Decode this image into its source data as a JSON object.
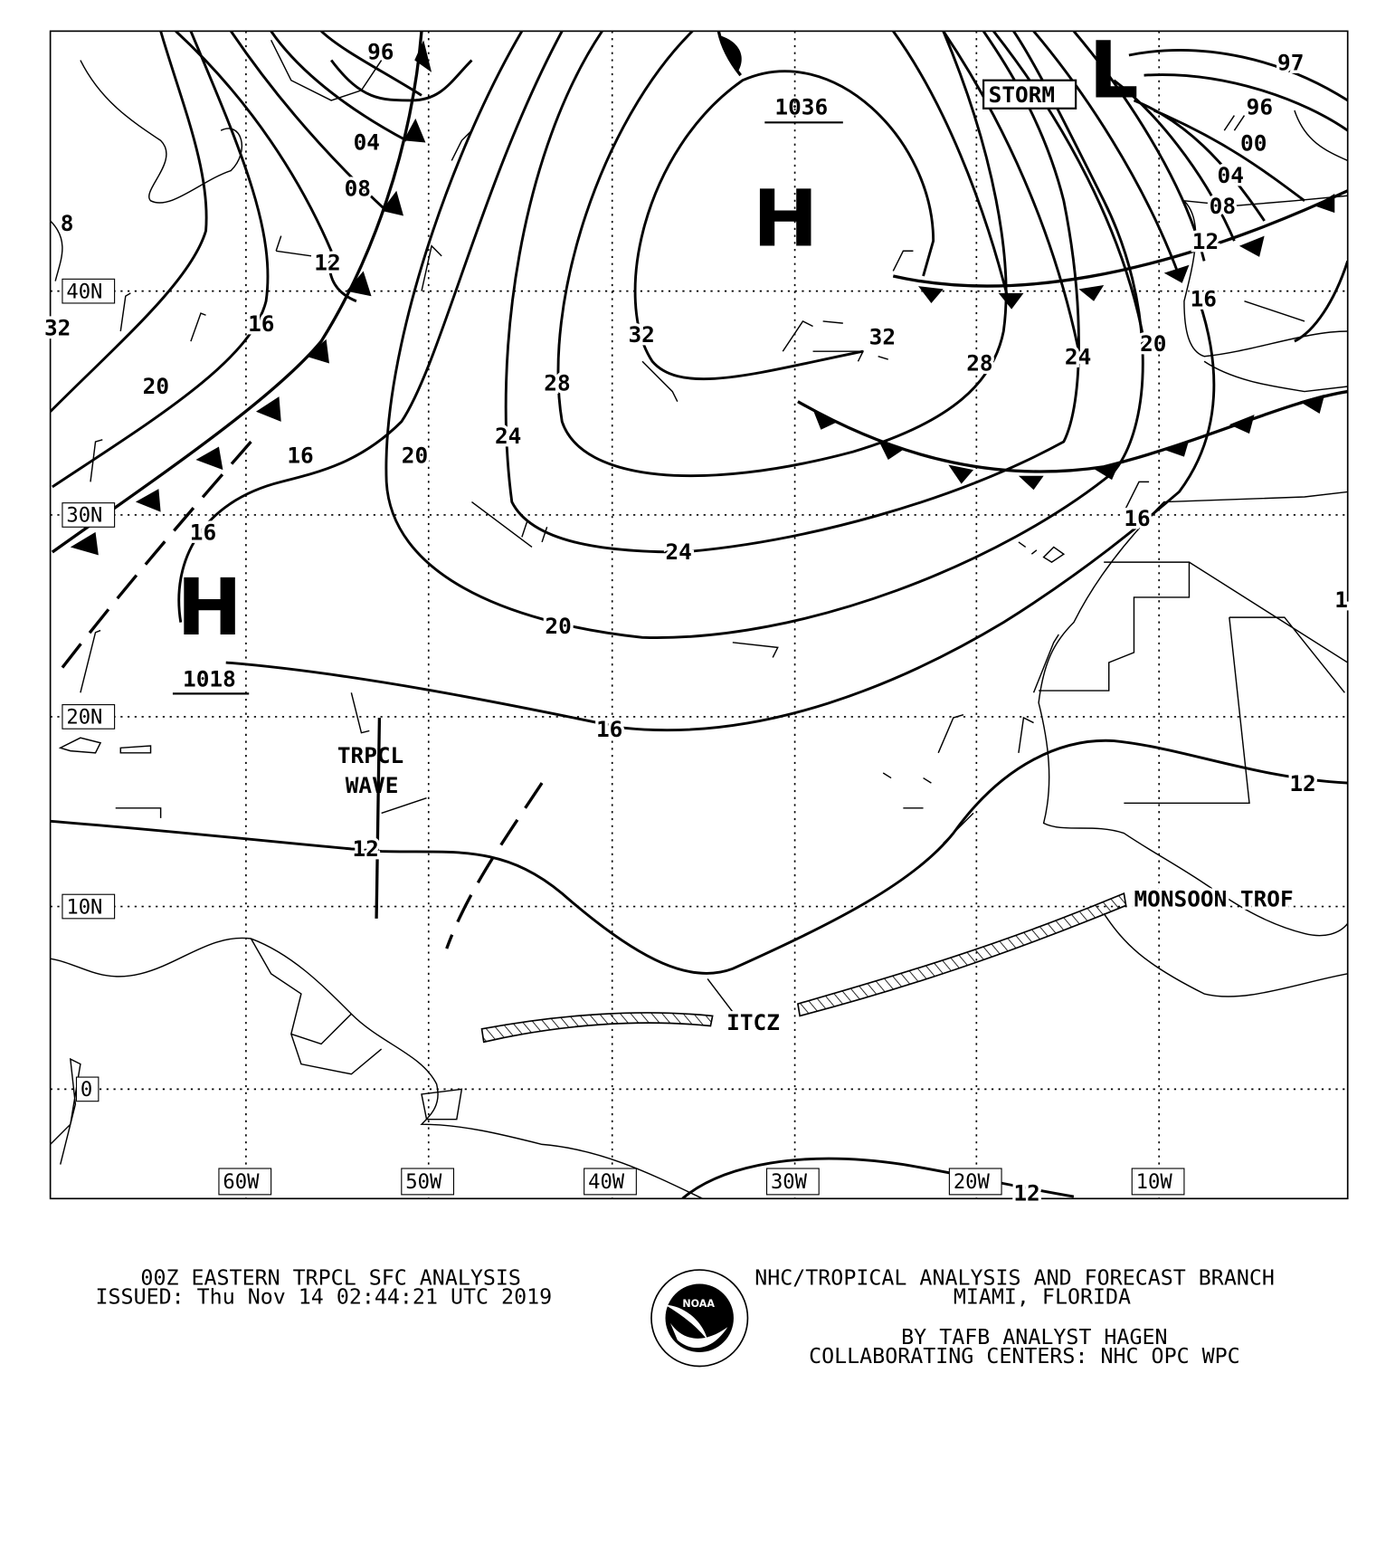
{
  "map": {
    "grid_labels": {
      "lat": [
        "40N",
        "30N",
        "20N",
        "10N",
        "0"
      ],
      "lon": [
        "60W",
        "50W",
        "40W",
        "30W",
        "20W",
        "10W"
      ]
    },
    "isobar_labels": [
      "96",
      "04",
      "08",
      "12",
      "16",
      "20",
      "16",
      "16",
      "20",
      "24",
      "28",
      "32",
      "32",
      "28",
      "24",
      "20",
      "24",
      "20",
      "16",
      "16",
      "12",
      "12",
      "12",
      "97",
      "96",
      "00",
      "04",
      "08",
      "12",
      "16",
      "32",
      "8",
      "1"
    ],
    "pressure_centers": [
      {
        "type": "H",
        "value": "1036"
      },
      {
        "type": "H",
        "value": "1018"
      },
      {
        "type": "L",
        "value": ""
      }
    ],
    "annotations": {
      "storm": "STORM",
      "tropical_wave": [
        "TRPCL",
        "WAVE"
      ],
      "itcz": "ITCZ",
      "monsoon_trough": "MONSOON TROF"
    }
  },
  "footer": {
    "title": "00Z EASTERN TRPCL SFC ANALYSIS",
    "issued": "ISSUED: Thu Nov 14 02:44:21 UTC 2019",
    "org": "NHC/TROPICAL ANALYSIS AND FORECAST BRANCH",
    "location": "MIAMI,  FLORIDA",
    "analyst": "BY TAFB ANALYST  HAGEN",
    "centers": "COLLABORATING CENTERS: NHC OPC WPC",
    "logo_text": "NOAA"
  }
}
